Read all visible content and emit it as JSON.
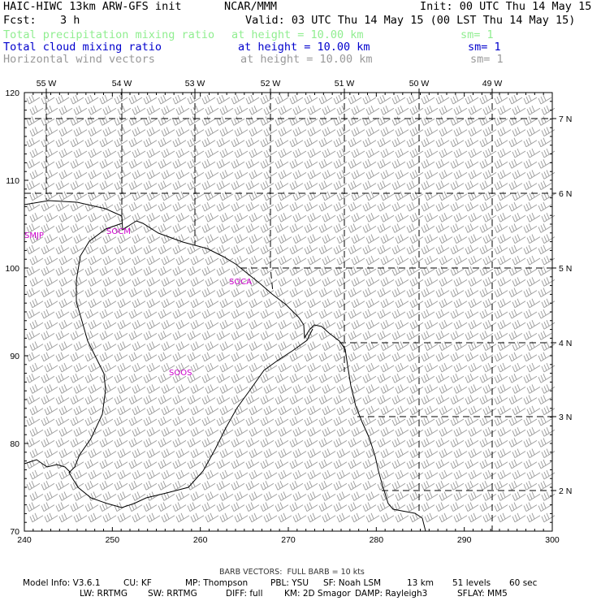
{
  "header": {
    "model_title": "HAIC-HIWC 13km ARW-GFS init",
    "org": "NCAR/MMM",
    "init": "Init: 00 UTC Thu 14 May 15",
    "fcst_label": "Fcst:",
    "fcst_value": "3 h",
    "valid": "Valid: 03 UTC Thu 14 May 15 (00 LST Thu 14 May 15)"
  },
  "fields": [
    {
      "name": "Total precipitation mixing ratio",
      "level": "at height = 10.00 km",
      "smooth": "sm= 1",
      "color": "#90ee90"
    },
    {
      "name": "Total cloud mixing ratio",
      "level": "at height = 10.00 km",
      "smooth": "sm= 1",
      "color": "#0000cd"
    },
    {
      "name": "Horizontal wind vectors",
      "level": "at height = 10.00 km",
      "smooth": "sm= 1",
      "color": "#999999"
    }
  ],
  "map": {
    "top_lon_labels": [
      "55 W",
      "54 W",
      "53 W",
      "52 W",
      "51 W",
      "50 W",
      "49 W"
    ],
    "right_lat_labels": [
      "7 N",
      "6 N",
      "5 N",
      "4 N",
      "3 N",
      "2 N"
    ],
    "left_y_ticks": [
      "120",
      "110",
      "100",
      "90",
      "80",
      "70"
    ],
    "bottom_x_ticks": [
      "240",
      "250",
      "260",
      "270",
      "280",
      "290",
      "300"
    ],
    "stations": [
      "SMJP",
      "SOCM",
      "SOCA",
      "SOOS"
    ],
    "station_color": "#cc00cc",
    "coast_color": "#000000",
    "barb_color": "#999999"
  },
  "footer": {
    "barb_note": "BARB VECTORS:  FULL BARB = 10 kts",
    "line1": [
      "Model Info: V3.6.1",
      "CU: KF",
      "MP: Thompson",
      "PBL: YSU",
      "SF: Noah LSM",
      "13 km",
      "51 levels",
      "60 sec"
    ],
    "line2": [
      "LW: RRTMG",
      "SW: RRTMG",
      "DIFF: full",
      "KM: 2D Smagor",
      "DAMP: Rayleigh3",
      "SFLAY: MM5"
    ]
  }
}
